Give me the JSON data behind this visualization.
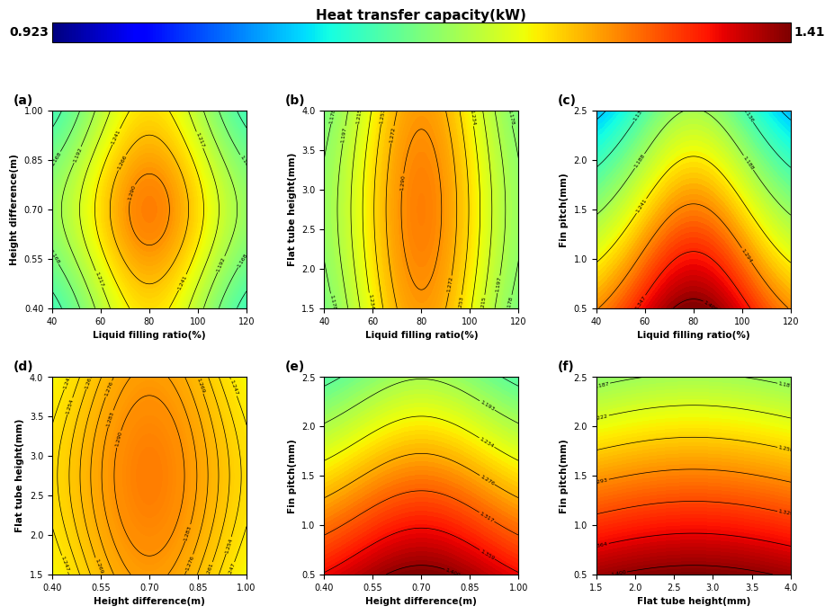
{
  "colorbar_title": "Heat transfer capacity(kW)",
  "vmin": 0.923,
  "vmax": 1.41,
  "panels": [
    {
      "label": "(a)",
      "xlabel": "Liquid filling ratio(%)",
      "ylabel": "Height difference(m)",
      "xrange": [
        40,
        120
      ],
      "yrange": [
        0.4,
        1.0
      ],
      "xticks": [
        40,
        60,
        80,
        100,
        120
      ],
      "yticks": [
        0.4,
        0.55,
        0.7,
        0.85,
        1.0
      ],
      "xvar": "liquid",
      "yvar": "height"
    },
    {
      "label": "(b)",
      "xlabel": "Liquid filling ratio(%)",
      "ylabel": "Flat tube height(mm)",
      "xrange": [
        40,
        120
      ],
      "yrange": [
        1.5,
        4.0
      ],
      "xticks": [
        40,
        60,
        80,
        100,
        120
      ],
      "yticks": [
        1.5,
        2.0,
        2.5,
        3.0,
        3.5,
        4.0
      ],
      "xvar": "liquid",
      "yvar": "flat_tube"
    },
    {
      "label": "(c)",
      "xlabel": "Liquid filling ratio(%)",
      "ylabel": "Fin pitch(mm)",
      "xrange": [
        40,
        120
      ],
      "yrange": [
        0.5,
        2.5
      ],
      "xticks": [
        40,
        60,
        80,
        100,
        120
      ],
      "yticks": [
        0.5,
        1.0,
        1.5,
        2.0,
        2.5
      ],
      "xvar": "liquid",
      "yvar": "fin_pitch"
    },
    {
      "label": "(d)",
      "xlabel": "Height difference(m)",
      "ylabel": "Flat tube height(mm)",
      "xrange": [
        0.4,
        1.0
      ],
      "yrange": [
        1.5,
        4.0
      ],
      "xticks": [
        0.4,
        0.55,
        0.7,
        0.85,
        1.0
      ],
      "yticks": [
        1.5,
        2.0,
        2.5,
        3.0,
        3.5,
        4.0
      ],
      "xvar": "height",
      "yvar": "flat_tube"
    },
    {
      "label": "(e)",
      "xlabel": "Height difference(m)",
      "ylabel": "Fin pitch(mm)",
      "xrange": [
        0.4,
        1.0
      ],
      "yrange": [
        0.5,
        2.5
      ],
      "xticks": [
        0.4,
        0.55,
        0.7,
        0.85,
        1.0
      ],
      "yticks": [
        0.5,
        1.0,
        1.5,
        2.0,
        2.5
      ],
      "xvar": "height",
      "yvar": "fin_pitch"
    },
    {
      "label": "(f)",
      "xlabel": "Flat tube height(mm)",
      "ylabel": "Fin pitch(mm)",
      "xrange": [
        1.5,
        4.0
      ],
      "yrange": [
        0.5,
        2.5
      ],
      "xticks": [
        1.5,
        2.0,
        2.5,
        3.0,
        3.5,
        4.0
      ],
      "yticks": [
        0.5,
        1.0,
        1.5,
        2.0,
        2.5
      ],
      "xvar": "flat_tube",
      "yvar": "fin_pitch"
    }
  ]
}
